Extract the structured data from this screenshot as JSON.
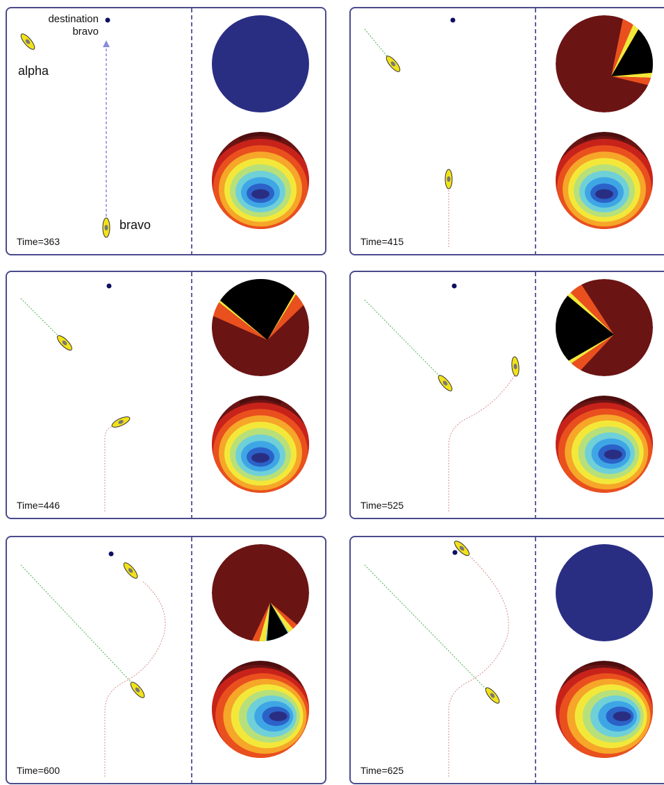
{
  "labels": {
    "destination": "destination",
    "bravo_sub": "bravo",
    "alpha": "alpha",
    "bravo": "bravo"
  },
  "colors": {
    "panel_border": "#4a4a8c",
    "divider": "#2a2a7a",
    "alpha_trail": "#4cae4c",
    "bravo_trail": "#d88a8a",
    "boat_fill": "#f2e21a",
    "boat_stroke": "#333333",
    "dest_dot": "#0e1060",
    "heading_arrow": "#8a8adf",
    "objective_low": "#2a2e83",
    "objective_high": "#6b1414"
  },
  "icons": [
    "boat-alpha-icon",
    "boat-bravo-icon",
    "destination-dot-icon"
  ],
  "panels": [
    {
      "id": "p1",
      "time": "Time=363",
      "top_state": "blue",
      "top_wedge": null,
      "bottom_skew": 0
    },
    {
      "id": "p2",
      "time": "Time=415",
      "top_state": "wedge",
      "top_wedge": {
        "start": -60,
        "span": 55,
        "dir": "upleft"
      },
      "bottom_skew": 0
    },
    {
      "id": "p3",
      "time": "Time=446",
      "top_state": "wedge",
      "top_wedge": {
        "start": -140,
        "span": 80,
        "dir": "upleft"
      },
      "bottom_skew": 0
    },
    {
      "id": "p4",
      "time": "Time=525",
      "top_state": "wedge",
      "top_wedge": {
        "start": 150,
        "span": 70,
        "dir": "left"
      },
      "bottom_skew": 1
    },
    {
      "id": "p5",
      "time": "Time=600",
      "top_state": "wedge",
      "top_wedge": {
        "start": 60,
        "span": 35,
        "dir": "down"
      },
      "bottom_skew": 2
    },
    {
      "id": "p6",
      "time": "Time=625",
      "top_state": "blue",
      "top_wedge": null,
      "bottom_skew": 2
    }
  ]
}
